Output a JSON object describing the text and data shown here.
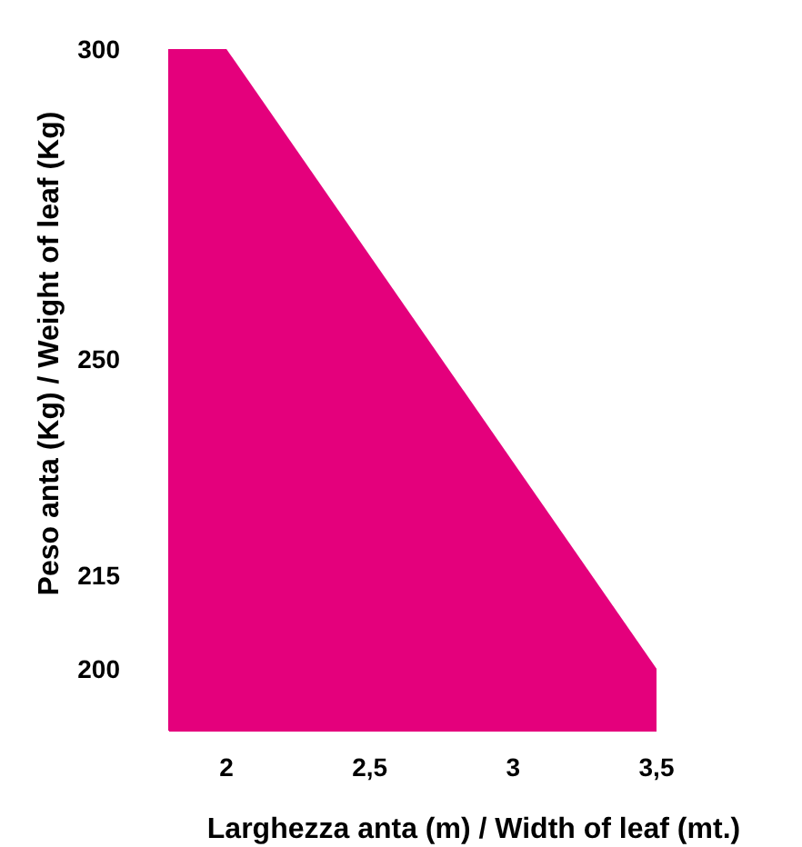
{
  "chart_data": {
    "type": "area",
    "xlabel": "Larghezza anta (m) / Width of leaf (mt.)",
    "ylabel": "Peso anta (Kg) / Weight of leaf (Kg)",
    "x": [
      1.8,
      2,
      3.5
    ],
    "values": [
      300,
      300,
      200
    ],
    "color": "#e4007c",
    "xlim": [
      1.8,
      3.5
    ],
    "ylim": [
      190,
      300
    ],
    "xticks": [
      2,
      {
        "value": 2.5,
        "label": "2,5"
      },
      3,
      {
        "value": 3.5,
        "label": "3,5"
      }
    ],
    "yticks": [
      200,
      215,
      250,
      300
    ],
    "grid": false
  }
}
